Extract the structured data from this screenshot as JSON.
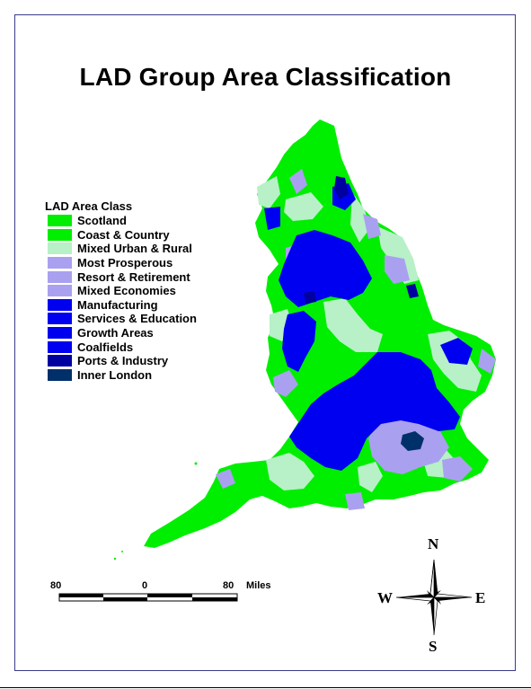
{
  "title": "LAD Group Area Classification",
  "legend": {
    "title": "LAD Area Class",
    "items": [
      {
        "label": "Scotland",
        "color": "#00ee00"
      },
      {
        "label": "Coast & Country",
        "color": "#00ee00"
      },
      {
        "label": "Mixed Urban & Rural",
        "color": "#b8f0c8"
      },
      {
        "label": "Most Prosperous",
        "color": "#aaa0f0"
      },
      {
        "label": "Resort & Retirement",
        "color": "#aaa0f0"
      },
      {
        "label": "Mixed Economies",
        "color": "#aaa0f0"
      },
      {
        "label": "Manufacturing",
        "color": "#0000f0"
      },
      {
        "label": "Services & Education",
        "color": "#0000f0"
      },
      {
        "label": "Growth Areas",
        "color": "#0000f0"
      },
      {
        "label": "Coalfields",
        "color": "#0000f0"
      },
      {
        "label": "Ports & Industry",
        "color": "#0000a0"
      },
      {
        "label": "Inner London",
        "color": "#00306a"
      }
    ]
  },
  "scale_bar": {
    "left_label": "80",
    "center_label": "0",
    "right_label": "80",
    "unit_label": "Miles"
  },
  "compass": {
    "north": "N",
    "south": "S",
    "east": "E",
    "west": "W"
  }
}
